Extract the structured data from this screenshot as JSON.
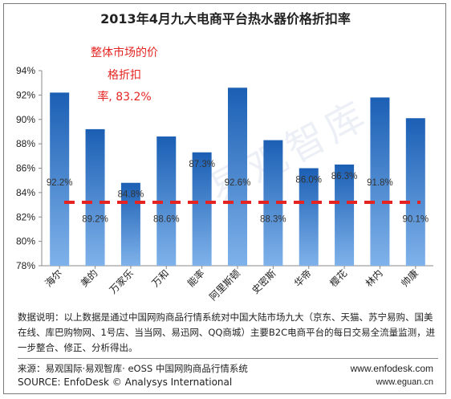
{
  "chart_data": {
    "type": "bar",
    "title": "2013年4月九大电商平台热水器价格折扣率",
    "categories": [
      "海尔",
      "美的",
      "万家乐",
      "万和",
      "能率",
      "阿里斯顿",
      "史密斯",
      "华帝",
      "樱花",
      "林内",
      "帅康"
    ],
    "values": [
      92.2,
      89.2,
      84.8,
      88.6,
      87.3,
      92.6,
      88.3,
      86.0,
      86.3,
      91.8,
      90.1
    ],
    "value_labels": [
      "92.2%",
      "89.2%",
      "84.8%",
      "88.6%",
      "87.3%",
      "92.6%",
      "88.3%",
      "86.0%",
      "86.3%",
      "91.8%",
      "90.1%"
    ],
    "ylim": [
      78,
      94
    ],
    "yticks": [
      "78%",
      "80%",
      "82%",
      "84%",
      "86%",
      "88%",
      "90%",
      "92%",
      "94%"
    ],
    "reference_line": {
      "value": 83.2,
      "color": "#e52421"
    },
    "annotation_lines": [
      "整体市场的价",
      "格折扣",
      "率, 83.2%"
    ],
    "bar_color_top": "#1b5fb4",
    "bar_color_bottom": "#7fb2ea",
    "grid": false
  },
  "footer": {
    "note": "数据说明：以上数据是通过中国网购商品行情系统对中国大陆市场九大（京东、天猫、苏宁易购、国美在线、库巴购物网、1号店、当当网、易迅网、QQ商城）主要B2C电商平台的每日交易全流量监测，进一步整合、修正、分析得出。",
    "source_cn": "来源：易观国际·易观智库· eOSS 中国网购商品行情系统",
    "source_en": "SOURCE: EnfoDesk © Analysys International",
    "url1": "www.enfodesk.com",
    "url2": "www.eguan.cn"
  },
  "watermark": "易观智库"
}
